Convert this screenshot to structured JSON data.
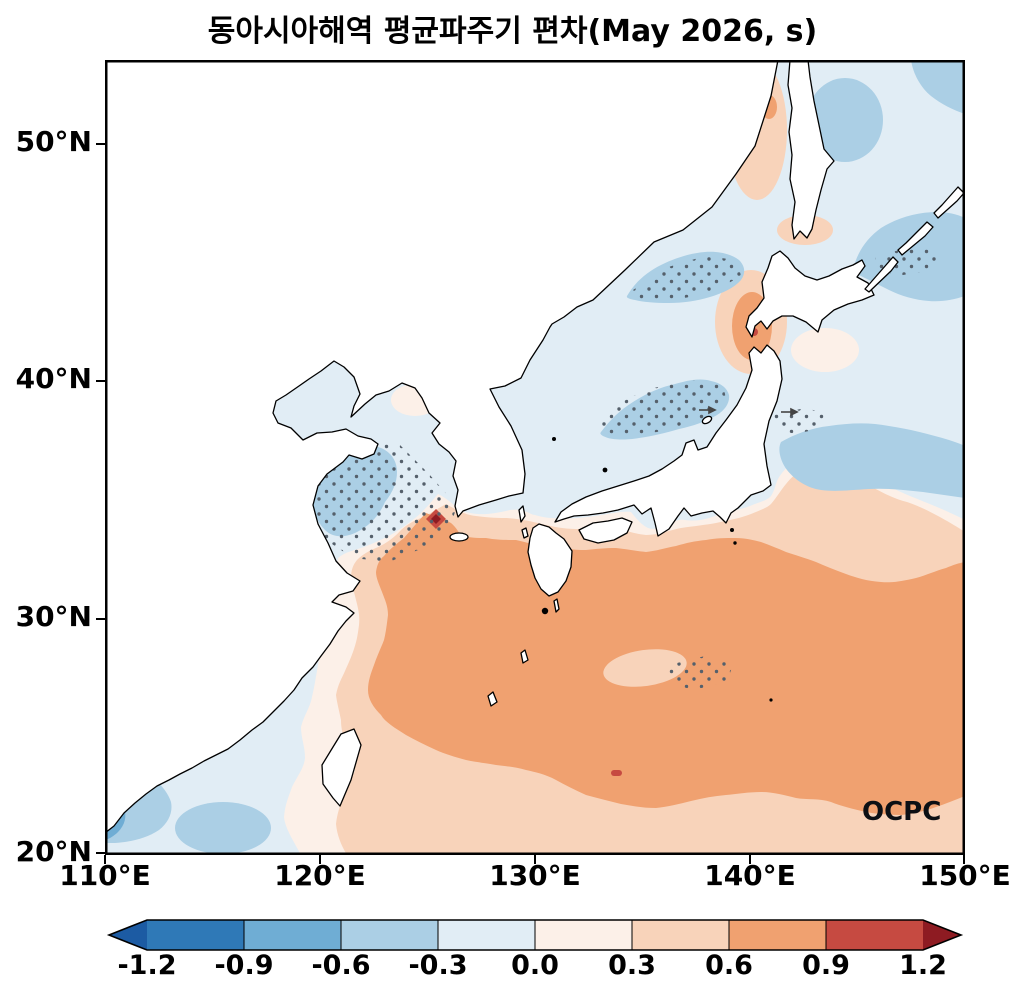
{
  "title": "동아시아해역 평균파주기 편차(May 2026, s)",
  "watermark": "OCPC",
  "axes": {
    "x_ticks": [
      "110°E",
      "120°E",
      "130°E",
      "140°E",
      "150°E"
    ],
    "y_ticks": [
      "50°N",
      "40°N",
      "30°N",
      "20°N"
    ],
    "x_range_deg_east": [
      110,
      150
    ],
    "y_range_deg_north": [
      20,
      53.5
    ]
  },
  "colorbar": {
    "orientation": "horizontal-bottom",
    "tick_labels": [
      "-1.2",
      "-0.9",
      "-0.6",
      "-0.3",
      "0.0",
      "0.3",
      "0.6",
      "0.9",
      "1.2"
    ],
    "segment_colors": [
      "#1c5ba3",
      "#2f79b7",
      "#6fadd4",
      "#abcfe5",
      "#e1edf5",
      "#fcf0e8",
      "#f8d3ba",
      "#f0a170",
      "#c64a41",
      "#8e1b22"
    ],
    "extend": "both"
  },
  "chart_data": {
    "type": "heatmap",
    "title": "동아시아해역 평균파주기 편차(May 2026, s)",
    "xlabel": "",
    "ylabel": "",
    "units": "s",
    "x_range_deg_east": [
      110,
      150
    ],
    "y_range_deg_north": [
      20,
      53.5
    ],
    "levels": [
      -1.2,
      -0.9,
      -0.6,
      -0.3,
      0.0,
      0.3,
      0.6,
      0.9,
      1.2
    ],
    "legend_position": "bottom",
    "grid": false,
    "field": "mean wave period anomaly",
    "regions": [
      {
        "area": "NW Pacific south of Japan and East China Sea (122-150E, 22-33N)",
        "anomaly_s": "+0.6 to +0.9 core"
      },
      {
        "area": "ring around the warm core (subtropics and along China coast south of 32N)",
        "anomaly_s": "+0.3 to +0.6"
      },
      {
        "area": "southwest of Korea (~125.5E, 34N)",
        "anomaly_s": "> +0.9 local maximum",
        "stippled": true
      },
      {
        "area": "west of Tsugaru Strait / SW Hokkaido (~140E, 41-43.5N)",
        "anomaly_s": "+0.6 to +0.9 with local > +0.9"
      },
      {
        "area": "Tatar Strait west of Sakhalin (140-142E, 47-53N)",
        "anomaly_s": "+0.3 to +0.6 patches"
      },
      {
        "area": "central Yellow Sea (119.5-123.5E, 33-36.5N)",
        "anomaly_s": "-0.6 to -0.3",
        "stippled": true
      },
      {
        "area": "central Sea of Japan (133-138.5E, 37.5-40N)",
        "anomaly_s": "-0.6 to -0.3",
        "stippled": true
      },
      {
        "area": "northern Sea of Japan (134-139.5E, 43.5-45.5N)",
        "anomaly_s": "-0.6 to -0.3",
        "stippled": true
      },
      {
        "area": "Pacific east of Tohoku (141-150E, 35-38N)",
        "anomaly_s": "-0.6 to -0.3",
        "stippled": true
      },
      {
        "area": "Pacific off the Kuril Islands / NE corner (144-150E, 42.5-46.5N)",
        "anomaly_s": "-0.6 to -0.3",
        "stippled": true
      },
      {
        "area": "bottom-left corner, northern South China Sea (110-114E, 20-24N)",
        "anomaly_s": "-0.9 to -0.3"
      },
      {
        "area": "Bohai Sea, East Korea Bay and remaining shelf seas",
        "anomaly_s": "-0.3 to +0.3 background"
      }
    ],
    "stippling_meaning": "dotted areas drawn over the shaded anomaly field"
  }
}
